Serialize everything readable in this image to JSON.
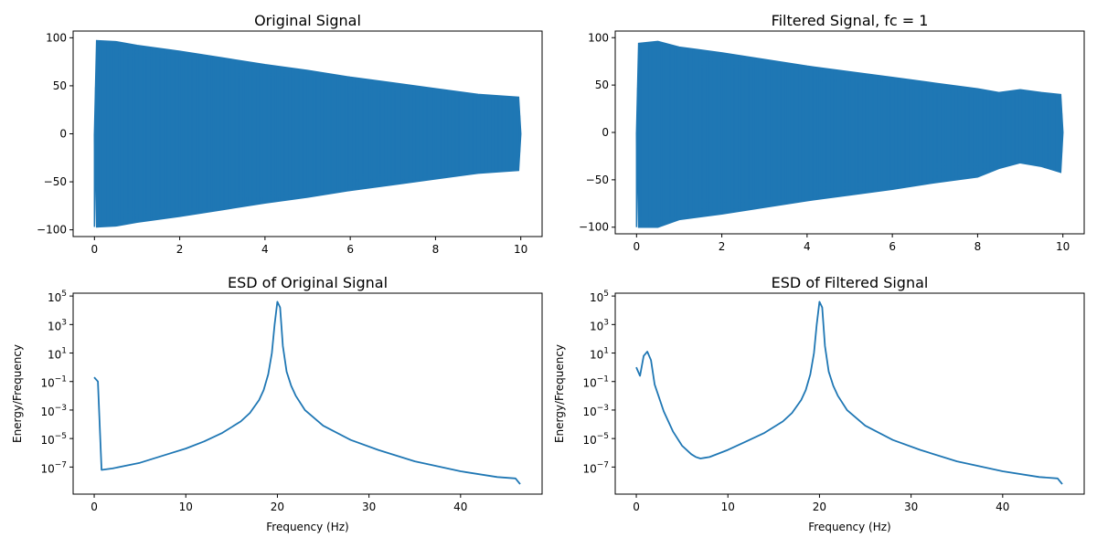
{
  "chart_data": [
    {
      "type": "line",
      "title": "Original Signal",
      "xlabel": "",
      "ylabel": "",
      "xlim": [
        -0.5,
        10.5
      ],
      "ylim": [
        -107,
        107
      ],
      "xticks": [
        0,
        2,
        4,
        6,
        8,
        10
      ],
      "yticks": [
        -100,
        -50,
        0,
        50,
        100
      ],
      "ytick_labels": [
        "−100",
        "−50",
        "0",
        "50",
        "100"
      ],
      "series": [
        {
          "color": "#1f77b4",
          "envelope": {
            "x": [
              0,
              0.05,
              0.5,
              1,
              2,
              3,
              4,
              5,
              6,
              7,
              8,
              9,
              9.95,
              10
            ],
            "upper": [
              0,
              97,
              96,
              92,
              86,
              79,
              72,
              66,
              59,
              53,
              47,
              41,
              38,
              0
            ],
            "lower": [
              0,
              -97,
              -96,
              -92,
              -86,
              -79,
              -72,
              -66,
              -59,
              -53,
              -47,
              -41,
              -38,
              0
            ]
          }
        }
      ]
    },
    {
      "type": "line",
      "title": "Filtered Signal, fc = 1",
      "xlabel": "",
      "ylabel": "",
      "xlim": [
        -0.5,
        10.5
      ],
      "ylim": [
        -107,
        107
      ],
      "xticks": [
        0,
        2,
        4,
        6,
        8,
        10
      ],
      "yticks": [
        -100,
        -50,
        0,
        50,
        100
      ],
      "ytick_labels": [
        "−100",
        "−50",
        "0",
        "50",
        "100"
      ],
      "series": [
        {
          "color": "#1f77b4",
          "envelope": {
            "x": [
              0,
              0.05,
              0.5,
              1,
              2,
              3,
              4,
              5,
              6,
              7,
              8,
              8.5,
              9,
              9.5,
              9.95,
              10
            ],
            "upper": [
              0,
              94,
              96,
              90,
              84,
              77,
              70,
              64,
              58,
              52,
              46,
              42,
              45,
              42,
              40,
              0
            ],
            "lower": [
              0,
              -100,
              -100,
              -92,
              -86,
              -79,
              -72,
              -66,
              -60,
              -53,
              -47,
              -38,
              -32,
              -36,
              -42,
              0
            ]
          }
        }
      ]
    },
    {
      "type": "line",
      "title": "ESD of Original Signal",
      "xlabel": "Frequency (Hz)",
      "ylabel": "Energy/Frequency",
      "yscale": "log",
      "xlim": [
        -2.3,
        48.9
      ],
      "ylim_log10": [
        -8.9,
        5.2
      ],
      "xticks": [
        0,
        10,
        20,
        30,
        40
      ],
      "yticks_log10": [
        -7,
        -5,
        -3,
        -1,
        1,
        3,
        5
      ],
      "ytick_labels": [
        "10−7",
        "10−5",
        "10−3",
        "10−1",
        "101",
        "103",
        "105"
      ],
      "series": [
        {
          "color": "#1f77b4",
          "x": [
            0,
            0.4,
            0.8,
            2,
            5,
            8,
            10,
            12,
            14,
            16,
            17,
            18,
            18.5,
            19,
            19.4,
            19.7,
            20,
            20.3,
            20.6,
            21,
            21.5,
            22,
            23,
            25,
            28,
            31,
            35,
            40,
            44,
            46,
            46.5
          ],
          "y_log10": [
            -0.7,
            -1.0,
            -7.2,
            -7.1,
            -6.7,
            -6.1,
            -5.7,
            -5.2,
            -4.6,
            -3.8,
            -3.2,
            -2.3,
            -1.6,
            -0.5,
            1.0,
            3.0,
            4.6,
            4.2,
            1.5,
            -0.3,
            -1.3,
            -2.0,
            -3.0,
            -4.1,
            -5.1,
            -5.8,
            -6.6,
            -7.3,
            -7.7,
            -7.8,
            -8.2
          ]
        }
      ]
    },
    {
      "type": "line",
      "title": "ESD of Filtered Signal",
      "xlabel": "Frequency (Hz)",
      "ylabel": "Energy/Frequency",
      "yscale": "log",
      "xlim": [
        -2.3,
        48.9
      ],
      "ylim_log10": [
        -8.9,
        5.2
      ],
      "xticks": [
        0,
        10,
        20,
        30,
        40
      ],
      "yticks_log10": [
        -7,
        -5,
        -3,
        -1,
        1,
        3,
        5
      ],
      "ytick_labels": [
        "10−7",
        "10−5",
        "10−3",
        "10−1",
        "101",
        "103",
        "105"
      ],
      "series": [
        {
          "color": "#1f77b4",
          "x": [
            0,
            0.4,
            0.8,
            1.2,
            1.6,
            2,
            3,
            4,
            5,
            6,
            6.5,
            7,
            7.5,
            8,
            10,
            12,
            14,
            16,
            17,
            18,
            18.5,
            19,
            19.4,
            19.7,
            20,
            20.3,
            20.6,
            21,
            21.5,
            22,
            23,
            25,
            28,
            31,
            35,
            40,
            44,
            46,
            46.5
          ],
          "y_log10": [
            0,
            -0.6,
            0.8,
            1.1,
            0.5,
            -1.2,
            -3.1,
            -4.5,
            -5.5,
            -6.1,
            -6.3,
            -6.4,
            -6.35,
            -6.3,
            -5.8,
            -5.2,
            -4.6,
            -3.8,
            -3.2,
            -2.3,
            -1.6,
            -0.5,
            1.0,
            3.0,
            4.6,
            4.2,
            1.5,
            -0.3,
            -1.3,
            -2.0,
            -3.0,
            -4.1,
            -5.1,
            -5.8,
            -6.6,
            -7.3,
            -7.7,
            -7.8,
            -8.2
          ]
        }
      ]
    }
  ]
}
